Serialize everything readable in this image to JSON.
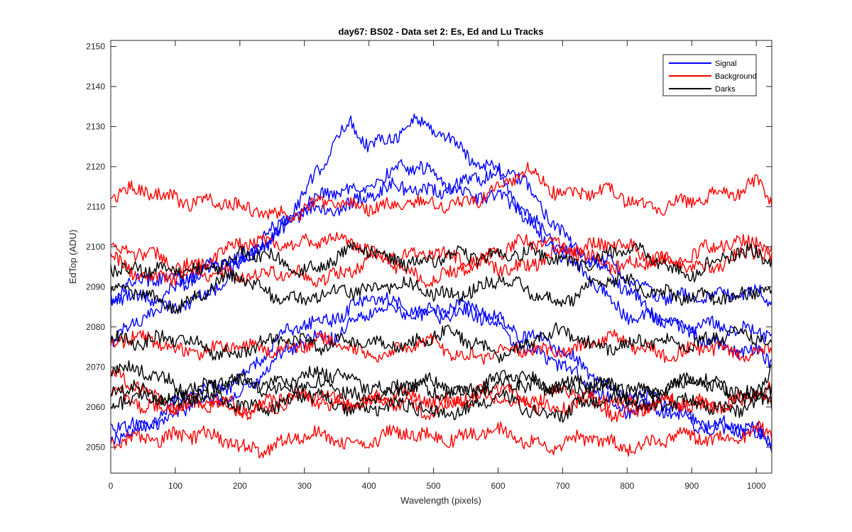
{
  "chart_data": {
    "type": "line",
    "title": "day67: BS02 - Data set 2: Es, Ed and Lu Tracks",
    "xlabel": "Wavelength (pixels)",
    "ylabel": "EdTop (ADU)",
    "xlim": [
      0,
      1024
    ],
    "ylim": [
      2043.5,
      2151.5
    ],
    "xticks": [
      0,
      100,
      200,
      300,
      400,
      500,
      600,
      700,
      800,
      900,
      1000
    ],
    "yticks": [
      2050,
      2060,
      2070,
      2080,
      2090,
      2100,
      2110,
      2120,
      2130,
      2140,
      2150
    ],
    "grid": false,
    "legend": {
      "placement": "top-right",
      "entries": [
        "Signal",
        "Background",
        "Darks"
      ]
    },
    "colors": {
      "Signal": "#0000ff",
      "Background": "#ff0000",
      "Darks": "#000000"
    },
    "series": [
      {
        "name": "Signal",
        "group": "Signal",
        "x": [
          0,
          100,
          200,
          300,
          370,
          400,
          470,
          550,
          620,
          700,
          800,
          900,
          1000,
          1024
        ],
        "values": [
          2078,
          2085,
          2094,
          2114,
          2130,
          2126,
          2131,
          2124,
          2118,
          2104,
          2088,
          2079,
          2080,
          2079
        ]
      },
      {
        "group": "Signal",
        "x": [
          0,
          100,
          200,
          300,
          400,
          450,
          500,
          600,
          700,
          800,
          900,
          1000,
          1024
        ],
        "values": [
          2088,
          2093,
          2096,
          2110,
          2116,
          2120,
          2117,
          2112,
          2101,
          2092,
          2086,
          2090,
          2086
        ]
      },
      {
        "group": "Signal",
        "x": [
          0,
          100,
          200,
          300,
          400,
          500,
          600,
          700,
          800,
          900,
          1000,
          1024
        ],
        "values": [
          2086,
          2090,
          2097,
          2108,
          2113,
          2115,
          2117,
          2097,
          2084,
          2079,
          2073,
          2070
        ]
      },
      {
        "group": "Signal",
        "x": [
          0,
          100,
          200,
          300,
          400,
          500,
          600,
          700,
          800,
          900,
          1000,
          1024
        ],
        "values": [
          2052,
          2060,
          2068,
          2081,
          2086,
          2085,
          2083,
          2073,
          2063,
          2058,
          2053,
          2050
        ]
      },
      {
        "group": "Signal",
        "x": [
          0,
          100,
          200,
          300,
          400,
          500,
          600,
          700,
          800,
          900,
          1000,
          1024
        ],
        "values": [
          2055,
          2058,
          2064,
          2076,
          2083,
          2084,
          2081,
          2069,
          2060,
          2057,
          2052,
          2051
        ]
      },
      {
        "group": "Background",
        "x": [
          0,
          100,
          200,
          300,
          400,
          500,
          600,
          650,
          700,
          800,
          900,
          1000,
          1024
        ],
        "values": [
          2113,
          2113,
          2109,
          2109,
          2111,
          2110,
          2114,
          2119,
          2114,
          2112,
          2110,
          2117,
          2112
        ]
      },
      {
        "group": "Background",
        "x": [
          0,
          100,
          200,
          300,
          400,
          500,
          600,
          700,
          800,
          900,
          1000,
          1024
        ],
        "values": [
          2100,
          2095,
          2100,
          2102,
          2100,
          2097,
          2099,
          2101,
          2099,
          2097,
          2103,
          2099
        ]
      },
      {
        "group": "Background",
        "x": [
          0,
          100,
          200,
          300,
          400,
          500,
          600,
          700,
          800,
          900,
          1000,
          1024
        ],
        "values": [
          2096,
          2092,
          2094,
          2092,
          2096,
          2093,
          2095,
          2098,
          2096,
          2095,
          2098,
          2097
        ]
      },
      {
        "group": "Background",
        "x": [
          0,
          100,
          200,
          300,
          400,
          500,
          600,
          700,
          800,
          900,
          1000,
          1024
        ],
        "values": [
          2077,
          2075,
          2074,
          2076,
          2074,
          2075,
          2073,
          2075,
          2076,
          2073,
          2075,
          2074
        ]
      },
      {
        "group": "Background",
        "x": [
          0,
          100,
          200,
          300,
          400,
          500,
          600,
          700,
          800,
          900,
          1000,
          1024
        ],
        "values": [
          2067,
          2061,
          2060,
          2062,
          2062,
          2062,
          2064,
          2060,
          2062,
          2060,
          2063,
          2060
        ]
      },
      {
        "group": "Background",
        "x": [
          0,
          100,
          200,
          300,
          400,
          500,
          600,
          700,
          800,
          900,
          1000,
          1024
        ],
        "values": [
          2050,
          2054,
          2050,
          2052,
          2052,
          2053,
          2053,
          2051,
          2051,
          2052,
          2054,
          2052
        ]
      },
      {
        "group": "Background",
        "x": [
          0,
          100,
          200,
          300,
          400,
          500,
          600,
          700,
          800,
          900,
          1000,
          1024
        ],
        "values": [
          2063,
          2060,
          2060,
          2062,
          2061,
          2060,
          2062,
          2063,
          2059,
          2061,
          2062,
          2064
        ]
      },
      {
        "group": "Darks",
        "x": [
          0,
          100,
          200,
          300,
          400,
          500,
          600,
          700,
          800,
          900,
          1000,
          1024
        ],
        "values": [
          2096,
          2093,
          2098,
          2095,
          2099,
          2096,
          2099,
          2096,
          2099,
          2094,
          2099,
          2098
        ]
      },
      {
        "group": "Darks",
        "x": [
          0,
          100,
          200,
          300,
          400,
          500,
          600,
          700,
          800,
          900,
          1000,
          1024
        ],
        "values": [
          2089,
          2086,
          2092,
          2086,
          2091,
          2088,
          2091,
          2087,
          2092,
          2086,
          2090,
          2088
        ]
      },
      {
        "group": "Darks",
        "x": [
          0,
          100,
          200,
          300,
          400,
          500,
          600,
          700,
          800,
          900,
          1000,
          1024
        ],
        "values": [
          2078,
          2076,
          2074,
          2077,
          2075,
          2078,
          2074,
          2078,
          2075,
          2077,
          2077,
          2078
        ]
      },
      {
        "group": "Darks",
        "x": [
          0,
          100,
          200,
          300,
          400,
          500,
          600,
          700,
          800,
          900,
          1000,
          1024
        ],
        "values": [
          2064,
          2062,
          2066,
          2065,
          2063,
          2066,
          2064,
          2067,
          2063,
          2066,
          2063,
          2064
        ]
      },
      {
        "group": "Darks",
        "x": [
          0,
          100,
          200,
          300,
          400,
          500,
          600,
          700,
          800,
          900,
          1000,
          1024
        ],
        "values": [
          2060,
          2064,
          2060,
          2062,
          2060,
          2059,
          2061,
          2059,
          2062,
          2060,
          2061,
          2060
        ]
      },
      {
        "group": "Darks",
        "x": [
          0,
          100,
          200,
          300,
          400,
          500,
          600,
          700,
          800,
          900,
          1000,
          1024
        ],
        "values": [
          2070,
          2066,
          2065,
          2068,
          2066,
          2063,
          2067,
          2065,
          2064,
          2066,
          2064,
          2071
        ]
      }
    ]
  }
}
